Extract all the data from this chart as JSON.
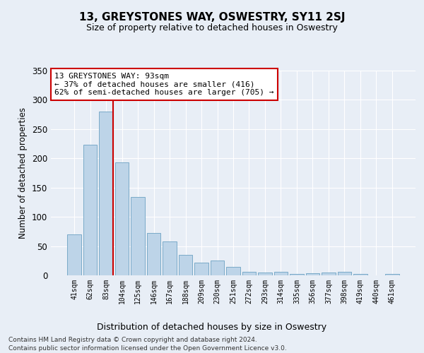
{
  "title": "13, GREYSTONES WAY, OSWESTRY, SY11 2SJ",
  "subtitle": "Size of property relative to detached houses in Oswestry",
  "xlabel": "Distribution of detached houses by size in Oswestry",
  "ylabel": "Number of detached properties",
  "categories": [
    "41sqm",
    "62sqm",
    "83sqm",
    "104sqm",
    "125sqm",
    "146sqm",
    "167sqm",
    "188sqm",
    "209sqm",
    "230sqm",
    "251sqm",
    "272sqm",
    "293sqm",
    "314sqm",
    "335sqm",
    "356sqm",
    "377sqm",
    "398sqm",
    "419sqm",
    "440sqm",
    "461sqm"
  ],
  "values": [
    70,
    223,
    280,
    193,
    134,
    73,
    58,
    35,
    22,
    25,
    14,
    6,
    5,
    6,
    3,
    4,
    5,
    6,
    3,
    0,
    2
  ],
  "bar_color": "#bdd4e8",
  "bar_edge_color": "#7aaac8",
  "redline_index": 2,
  "annotation_text": "13 GREYSTONES WAY: 93sqm\n← 37% of detached houses are smaller (416)\n62% of semi-detached houses are larger (705) →",
  "annotation_box_color": "#ffffff",
  "annotation_box_edge_color": "#cc0000",
  "redline_color": "#cc0000",
  "ylim": [
    0,
    350
  ],
  "yticks": [
    0,
    50,
    100,
    150,
    200,
    250,
    300,
    350
  ],
  "footer1": "Contains HM Land Registry data © Crown copyright and database right 2024.",
  "footer2": "Contains public sector information licensed under the Open Government Licence v3.0.",
  "bg_color": "#e8eef6",
  "plot_bg_color": "#e8eef6"
}
